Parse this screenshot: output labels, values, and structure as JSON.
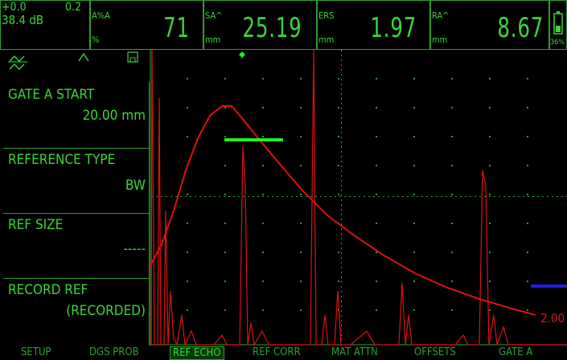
{
  "header": {
    "gain_offset": "+0.0",
    "gain_step": "0.2",
    "gain_db": "38.4 dB",
    "readouts": [
      {
        "label_top": "A%A",
        "label_bottom": "%",
        "value": "71"
      },
      {
        "label_top": "SA^",
        "label_bottom": "mm",
        "value": "25.19"
      },
      {
        "label_top": "ERS",
        "label_bottom": "mm",
        "value": "1.97"
      },
      {
        "label_top": "RA^",
        "label_bottom": "mm",
        "value": "8.67"
      }
    ],
    "battery_text": "36%"
  },
  "menu": [
    {
      "title": "GATE A START",
      "value": "20.00 mm"
    },
    {
      "title": "REFERENCE TYPE",
      "value": "BW"
    },
    {
      "title": "REF SIZE",
      "value": "-----"
    },
    {
      "title": "RECORD REF",
      "value": "(RECORDED)"
    }
  ],
  "scan": {
    "right_label": "2.00"
  },
  "tabs": [
    {
      "label": "SETUP",
      "active": false
    },
    {
      "label": "DGS PROB",
      "active": false
    },
    {
      "label": "REF ECHO",
      "active": true
    },
    {
      "label": "REF CORR",
      "active": false
    },
    {
      "label": "MAT ATTN",
      "active": false
    },
    {
      "label": "OFFSETS",
      "active": false
    },
    {
      "label": "GATE A",
      "active": false
    }
  ],
  "colors": {
    "screen_green": "#3ad63a",
    "echo_red": "#e01010",
    "gate_green": "#22ee22",
    "gate_blue": "#2020e0"
  }
}
